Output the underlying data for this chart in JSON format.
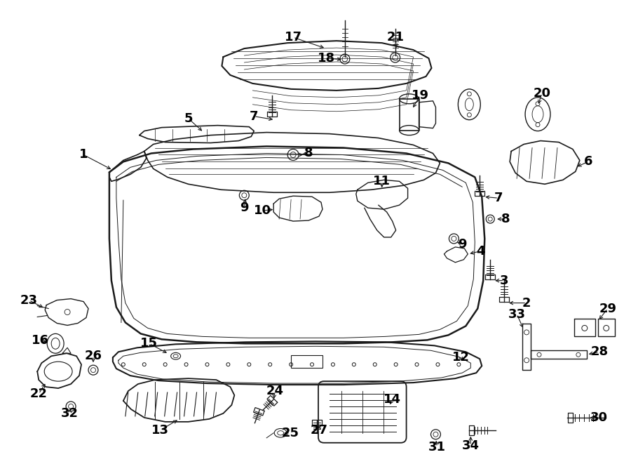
{
  "background_color": "#ffffff",
  "line_color": "#1a1a1a",
  "text_color": "#000000",
  "fig_width": 9.0,
  "fig_height": 6.61,
  "dpi": 100,
  "label_fontsize": 13
}
